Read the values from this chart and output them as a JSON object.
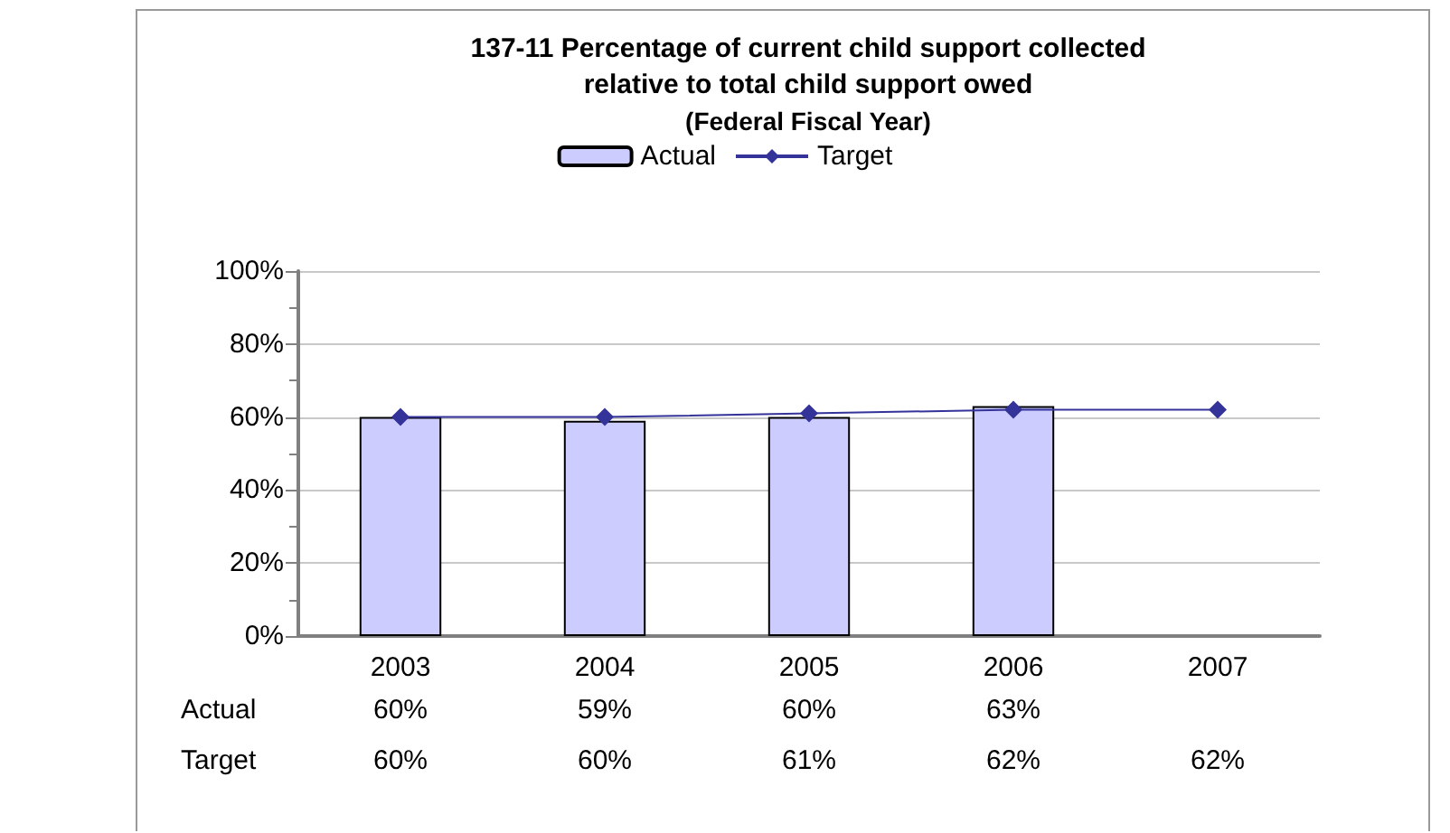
{
  "chart_data": {
    "type": "bar",
    "title": "137-11 Percentage of current child support collected\nrelative to total child support owed",
    "subtitle": "(Federal Fiscal Year)",
    "categories": [
      "2003",
      "2004",
      "2005",
      "2006",
      "2007"
    ],
    "series": [
      {
        "name": "Actual",
        "color": "#ccccff",
        "values": [
          60,
          59,
          60,
          63,
          null
        ],
        "value_labels": [
          "60%",
          "59%",
          "60%",
          "63%",
          null
        ]
      },
      {
        "name": "Target",
        "type": "line",
        "color": "#333399",
        "marker": "diamond",
        "line_style": "solid",
        "values": [
          60,
          60,
          61,
          62,
          62
        ],
        "value_labels": [
          "60%",
          "60%",
          "61%",
          "62%",
          "62%"
        ]
      }
    ],
    "ylim": [
      0,
      100
    ],
    "yticks": [
      {
        "value": 0,
        "label": "0%"
      },
      {
        "value": 20,
        "label": "20%"
      },
      {
        "value": 40,
        "label": "40%"
      },
      {
        "value": 60,
        "label": "60%"
      },
      {
        "value": 80,
        "label": "80%"
      },
      {
        "value": 100,
        "label": "100%"
      }
    ],
    "grid": "y",
    "legend": "top"
  }
}
